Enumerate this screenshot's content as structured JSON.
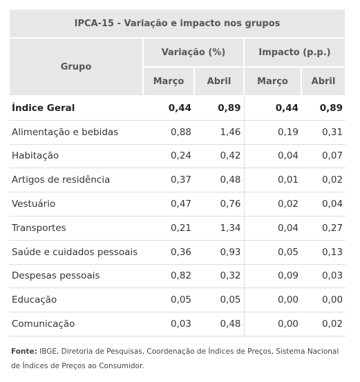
{
  "title": "IPCA-15 - Variação e impacto nos grupos",
  "headers": {
    "grupo": "Grupo",
    "variacao": "Variação (%)",
    "impacto": "Impacto (p.p.)",
    "marco": "Março",
    "abril": "Abril"
  },
  "rows": [
    {
      "label": "Índice Geral",
      "v_marco": "0,44",
      "v_abril": "0,89",
      "i_marco": "0,44",
      "i_abril": "0,89"
    },
    {
      "label": "Alimentação e bebidas",
      "v_marco": "0,88",
      "v_abril": "1,46",
      "i_marco": "0,19",
      "i_abril": "0,31"
    },
    {
      "label": "Habitação",
      "v_marco": "0,24",
      "v_abril": "0,42",
      "i_marco": "0,04",
      "i_abril": "0,07"
    },
    {
      "label": "Artigos de residência",
      "v_marco": "0,37",
      "v_abril": "0,48",
      "i_marco": "0,01",
      "i_abril": "0,02"
    },
    {
      "label": "Vestuário",
      "v_marco": "0,47",
      "v_abril": "0,76",
      "i_marco": "0,02",
      "i_abril": "0,04"
    },
    {
      "label": "Transportes",
      "v_marco": "0,21",
      "v_abril": "1,34",
      "i_marco": "0,04",
      "i_abril": "0,27"
    },
    {
      "label": "Saúde e cuidados pessoais",
      "v_marco": "0,36",
      "v_abril": "0,93",
      "i_marco": "0,05",
      "i_abril": "0,13"
    },
    {
      "label": "Despesas pessoais",
      "v_marco": "0,82",
      "v_abril": "0,32",
      "i_marco": "0,09",
      "i_abril": "0,03"
    },
    {
      "label": "Educação",
      "v_marco": "0,05",
      "v_abril": "0,05",
      "i_marco": "0,00",
      "i_abril": "0,00"
    },
    {
      "label": "Comunicação",
      "v_marco": "0,03",
      "v_abril": "0,48",
      "i_marco": "0,00",
      "i_abril": "0,02"
    }
  ],
  "footer": {
    "label": "Fonte:",
    "text": " IBGE, Diretoria de Pesquisas, Coordenação de Índices de Preços, Sistema Nacional de Índices de Preços ao Consumidor."
  }
}
